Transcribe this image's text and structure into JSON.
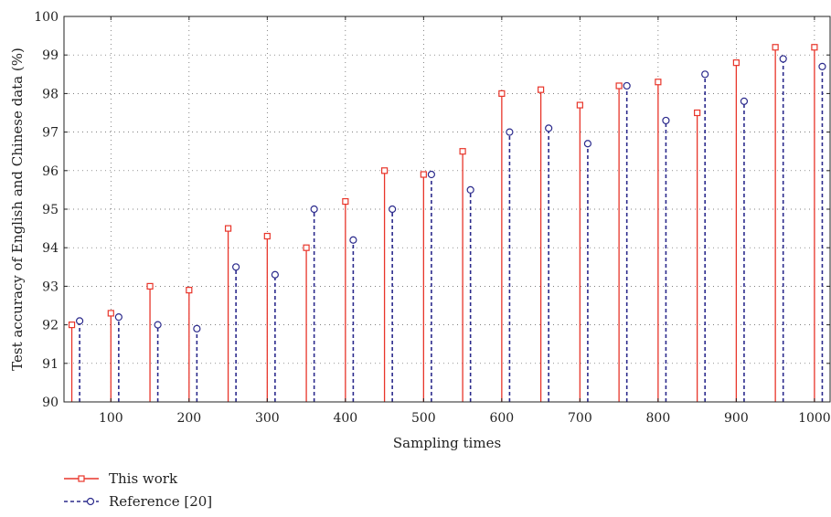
{
  "chart_data": {
    "type": "stem",
    "xlabel": "Sampling times",
    "ylabel": "Test accuracy of English and Chinese data (%)",
    "xlim": [
      40,
      1020
    ],
    "ylim": [
      90,
      100
    ],
    "xticks": [
      100,
      200,
      300,
      400,
      500,
      600,
      700,
      800,
      900,
      1000
    ],
    "yticks": [
      90,
      91,
      92,
      93,
      94,
      95,
      96,
      97,
      98,
      99,
      100
    ],
    "grid": true,
    "legend_position": "bottom-left (below plot)",
    "series": [
      {
        "name": "This work",
        "color": "#e8352a",
        "marker": "square",
        "line": "solid",
        "x": [
          50,
          100,
          150,
          200,
          250,
          300,
          350,
          400,
          450,
          500,
          550,
          600,
          650,
          700,
          750,
          800,
          850,
          900,
          950,
          1000
        ],
        "y": [
          92.0,
          92.3,
          93.0,
          92.9,
          94.5,
          94.3,
          94.0,
          95.2,
          96.0,
          95.9,
          96.5,
          98.0,
          98.1,
          97.7,
          98.2,
          98.3,
          97.5,
          98.8,
          99.2,
          99.2
        ]
      },
      {
        "name": "Reference [20]",
        "color": "#2b2a8c",
        "marker": "circle",
        "line": "dashed",
        "x": [
          60,
          110,
          160,
          210,
          260,
          310,
          360,
          410,
          460,
          510,
          560,
          610,
          660,
          710,
          760,
          810,
          860,
          910,
          960,
          1010
        ],
        "y": [
          92.1,
          92.2,
          92.0,
          91.9,
          93.5,
          93.3,
          95.0,
          94.2,
          95.0,
          95.9,
          95.5,
          97.0,
          97.1,
          96.7,
          98.2,
          97.3,
          98.5,
          97.8,
          98.9,
          98.7
        ]
      }
    ]
  }
}
